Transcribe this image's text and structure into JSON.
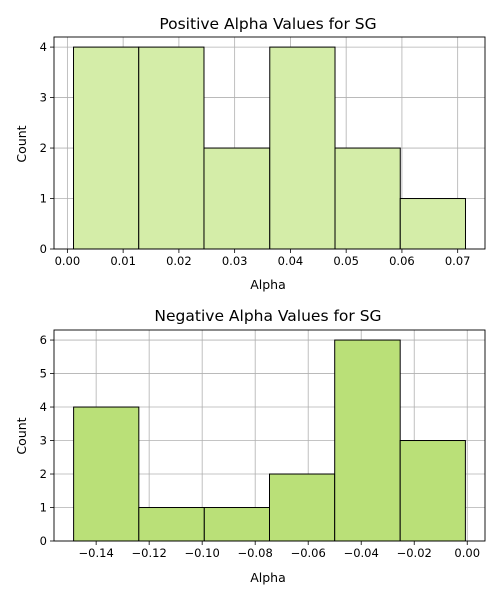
{
  "chart_data": [
    {
      "type": "bar",
      "title": "Positive Alpha Values for SG",
      "xlabel": "Alpha",
      "ylabel": "Count",
      "bin_edges": [
        0.0011,
        0.0128,
        0.0245,
        0.0363,
        0.048,
        0.0597,
        0.0714
      ],
      "values": [
        4,
        4,
        2,
        4,
        2,
        1
      ],
      "xlim": [
        -0.0024,
        0.0749
      ],
      "ylim": [
        0,
        4.2
      ],
      "xticks": [
        "0.00",
        "0.01",
        "0.02",
        "0.03",
        "0.04",
        "0.05",
        "0.06",
        "0.07"
      ],
      "xtick_values": [
        0.0,
        0.01,
        0.02,
        0.03,
        0.04,
        0.05,
        0.06,
        0.07
      ],
      "yticks": [
        "0",
        "1",
        "2",
        "3",
        "4"
      ],
      "ytick_values": [
        0,
        1,
        2,
        3,
        4
      ],
      "grid": true,
      "bar_color": "#d4eda8",
      "edge_color": "#000000"
    },
    {
      "type": "bar",
      "title": "Negative Alpha Values for SG",
      "xlabel": "Alpha",
      "ylabel": "Count",
      "bin_edges": [
        -0.1485,
        -0.1239,
        -0.0992,
        -0.0746,
        -0.05,
        -0.0253,
        -0.0007
      ],
      "values": [
        4,
        1,
        1,
        2,
        6,
        3
      ],
      "xlim": [
        -0.1559,
        0.0067
      ],
      "ylim": [
        0,
        6.3
      ],
      "xticks": [
        "−0.14",
        "−0.12",
        "−0.10",
        "−0.08",
        "−0.06",
        "−0.04",
        "−0.02",
        "0.00"
      ],
      "xtick_values": [
        -0.14,
        -0.12,
        -0.1,
        -0.08,
        -0.06,
        -0.04,
        -0.02,
        0.0
      ],
      "yticks": [
        "0",
        "1",
        "2",
        "3",
        "4",
        "5",
        "6"
      ],
      "ytick_values": [
        0,
        1,
        2,
        3,
        4,
        5,
        6
      ],
      "grid": true,
      "bar_color": "#bae078",
      "edge_color": "#000000"
    }
  ]
}
